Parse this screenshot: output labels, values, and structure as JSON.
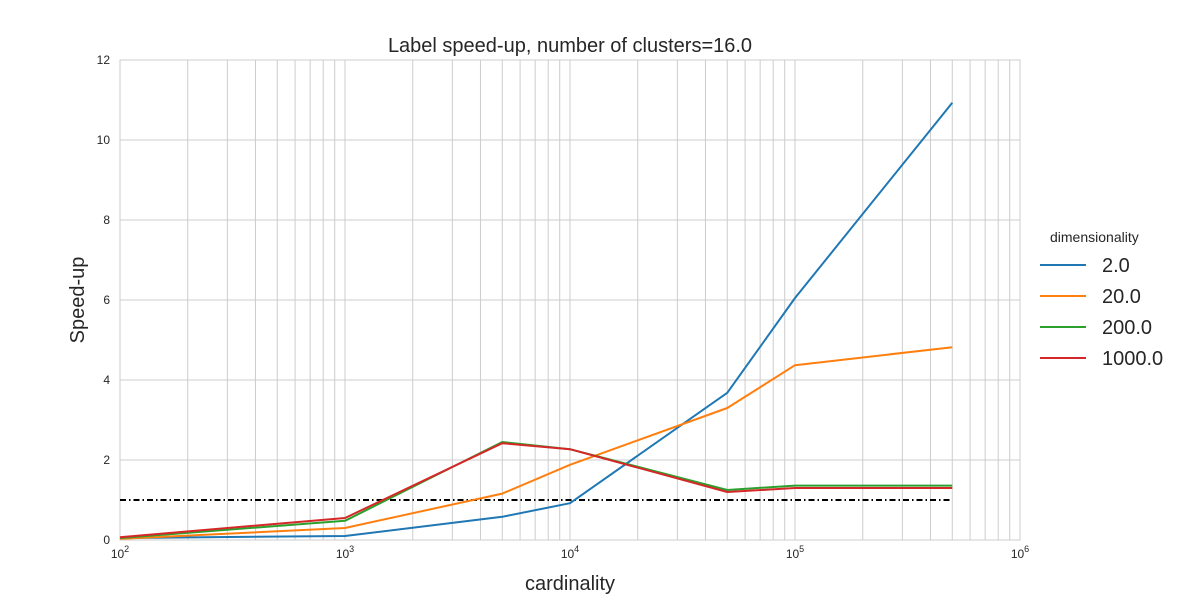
{
  "chart_data": {
    "type": "line",
    "title": "Label speed-up, number of clusters=16.0",
    "xlabel": "cardinality",
    "ylabel": "Speed-up",
    "xscale": "log",
    "xlim": [
      100,
      1000000
    ],
    "ylim": [
      0,
      12
    ],
    "grid": true,
    "x_ticks": [
      {
        "value": 100,
        "base": "10",
        "exp": "2"
      },
      {
        "value": 1000,
        "base": "10",
        "exp": "3"
      },
      {
        "value": 10000,
        "base": "10",
        "exp": "4"
      },
      {
        "value": 100000,
        "base": "10",
        "exp": "5"
      },
      {
        "value": 1000000,
        "base": "10",
        "exp": "6"
      }
    ],
    "y_ticks": [
      {
        "value": 0,
        "label": "0"
      },
      {
        "value": 2,
        "label": "2"
      },
      {
        "value": 4,
        "label": "4"
      },
      {
        "value": 6,
        "label": "6"
      },
      {
        "value": 8,
        "label": "8"
      },
      {
        "value": 10,
        "label": "10"
      },
      {
        "value": 12,
        "label": "12"
      }
    ],
    "legend_title": "dimensionality",
    "legend_position": "right",
    "reference_line": {
      "y": 1.0,
      "x_range": [
        100,
        500000
      ],
      "style": "dash-dot",
      "color": "#000000"
    },
    "x": [
      100,
      1000,
      5000,
      10000,
      50000,
      100000,
      500000
    ],
    "series": [
      {
        "name": "2.0",
        "color": "#1f77b4",
        "values": [
          0.05,
          0.1,
          0.58,
          0.92,
          3.68,
          6.05,
          10.93
        ]
      },
      {
        "name": "20.0",
        "color": "#ff7f0e",
        "values": [
          0.03,
          0.3,
          1.16,
          1.88,
          3.3,
          4.37,
          4.82
        ]
      },
      {
        "name": "200.0",
        "color": "#2ca02c",
        "values": [
          0.05,
          0.48,
          2.45,
          2.27,
          1.25,
          1.36,
          1.36
        ]
      },
      {
        "name": "1000.0",
        "color": "#d62728",
        "values": [
          0.07,
          0.55,
          2.42,
          2.27,
          1.2,
          1.3,
          1.3
        ]
      }
    ]
  }
}
